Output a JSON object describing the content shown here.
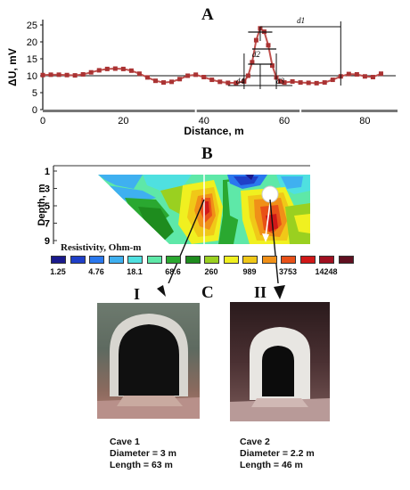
{
  "panels": {
    "a": "A",
    "b": "B",
    "c": "C"
  },
  "chart_data": [
    {
      "type": "line",
      "title": "",
      "ylabel": "ΔU, mV",
      "xlabel": "Distance, m",
      "xlim": [
        0,
        85
      ],
      "ylim": [
        0,
        25
      ],
      "xticks": [
        "0",
        "20",
        "40",
        "60",
        "80"
      ],
      "yticks": [
        "0",
        "5",
        "10",
        "15",
        "20",
        "25"
      ],
      "baseline": 10,
      "grid": false,
      "series": [
        {
          "x": [
            0,
            2,
            4,
            6,
            8,
            10,
            12,
            14,
            16,
            18,
            20,
            22,
            24,
            26,
            28,
            30,
            32,
            34,
            36,
            38,
            40,
            42,
            44,
            46,
            48,
            50,
            51,
            52,
            53,
            54,
            55,
            56,
            57,
            58,
            59,
            60,
            62,
            64,
            66,
            68,
            70,
            72,
            74,
            76,
            78,
            80,
            82,
            84
          ],
          "y": [
            10.2,
            10.3,
            10.3,
            10.2,
            10.1,
            10.4,
            11.0,
            11.6,
            12.0,
            12.1,
            12.0,
            11.5,
            10.6,
            9.5,
            8.5,
            8.0,
            8.2,
            9.0,
            10.0,
            10.3,
            9.6,
            8.8,
            8.2,
            7.9,
            7.9,
            8.3,
            10.0,
            14.0,
            20.5,
            24.0,
            23.0,
            19.0,
            13.0,
            9.5,
            8.3,
            8.0,
            8.3,
            8.0,
            7.9,
            7.8,
            8.0,
            8.8,
            9.8,
            10.5,
            10.4,
            9.8,
            9.6,
            10.6
          ]
        }
      ],
      "annotations": [
        "d1",
        "d2",
        "d3",
        "d4"
      ]
    },
    {
      "type": "heatmap",
      "ylabel": "Depth, m",
      "yticks": [
        "1",
        "3",
        "5",
        "7",
        "9"
      ],
      "legend_title": "Resistivity, Ohm-m",
      "legend_labels": [
        "1.25",
        "4.76",
        "18.1",
        "68.6",
        "260",
        "989",
        "3753",
        "14248"
      ],
      "colors": [
        "#1a1a8c",
        "#1f3fc8",
        "#2a78ee",
        "#3fb0f0",
        "#4fe0e0",
        "#5ee8a8",
        "#2aa830",
        "#1e8c1e",
        "#9ad020",
        "#f0f020",
        "#f0c818",
        "#f09018",
        "#e85018",
        "#d01818",
        "#a01020",
        "#601020"
      ]
    }
  ],
  "caves": [
    {
      "marker": "I",
      "name": "Cave 1",
      "diameter": "Diameter = 3 m",
      "length": "Length = 63 m"
    },
    {
      "marker": "II",
      "name": "Cave 2",
      "diameter": "Diameter = 2.2 m",
      "length": "Length = 46 m"
    }
  ]
}
